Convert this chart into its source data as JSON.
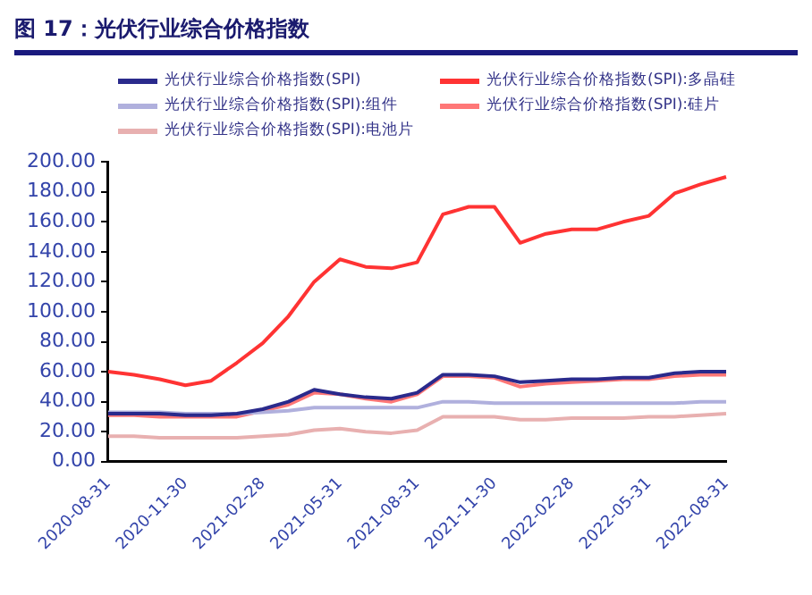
{
  "chart_data": {
    "type": "line",
    "title": "图 17：光伏行业综合价格指数",
    "categories": [
      "2020-08-31",
      null,
      null,
      "2020-11-30",
      null,
      null,
      "2021-02-28",
      null,
      null,
      "2021-05-31",
      null,
      null,
      "2021-08-31",
      null,
      null,
      "2021-11-30",
      null,
      null,
      "2022-02-28",
      null,
      null,
      "2022-05-31",
      null,
      null,
      "2022-08-31"
    ],
    "series": [
      {
        "name": "光伏行业综合价格指数(SPI)",
        "color": "#2a2a8c",
        "values": [
          32,
          32,
          32,
          31,
          31,
          32,
          35,
          40,
          48,
          45,
          43,
          42,
          46,
          58,
          58,
          57,
          53,
          54,
          55,
          55,
          56,
          56,
          59,
          60,
          60
        ]
      },
      {
        "name": "光伏行业综合价格指数(SPI):多晶硅",
        "color": "#ff3333",
        "values": [
          60,
          58,
          55,
          51,
          54,
          66,
          79,
          97,
          120,
          135,
          130,
          129,
          133,
          165,
          170,
          170,
          146,
          152,
          155,
          155,
          160,
          164,
          179,
          185,
          190
        ]
      },
      {
        "name": "光伏行业综合价格指数(SPI):组件",
        "color": "#b0b0dd",
        "values": [
          33,
          33,
          33,
          32,
          32,
          32,
          33,
          34,
          36,
          36,
          36,
          36,
          36,
          40,
          40,
          39,
          39,
          39,
          39,
          39,
          39,
          39,
          39,
          40,
          40
        ]
      },
      {
        "name": "光伏行业综合价格指数(SPI):硅片",
        "color": "#ff7777",
        "values": [
          31,
          31,
          30,
          30,
          30,
          30,
          34,
          38,
          46,
          45,
          42,
          40,
          45,
          57,
          57,
          56,
          50,
          52,
          53,
          54,
          55,
          55,
          57,
          58,
          58
        ]
      },
      {
        "name": "光伏行业综合价格指数(SPI):电池片",
        "color": "#e8b0b0",
        "values": [
          17,
          17,
          16,
          16,
          16,
          16,
          17,
          18,
          21,
          22,
          20,
          19,
          21,
          30,
          30,
          30,
          28,
          28,
          29,
          29,
          29,
          30,
          30,
          31,
          32
        ]
      }
    ],
    "ylim": [
      0,
      200
    ],
    "yticks": [
      {
        "value": 0,
        "label": "0.00"
      },
      {
        "value": 20,
        "label": "20.00"
      },
      {
        "value": 40,
        "label": "40.00"
      },
      {
        "value": 60,
        "label": "60.00"
      },
      {
        "value": 80,
        "label": "80.00"
      },
      {
        "value": 100,
        "label": "100.00"
      },
      {
        "value": 120,
        "label": "120.00"
      },
      {
        "value": 140,
        "label": "140.00"
      },
      {
        "value": 160,
        "label": "160.00"
      },
      {
        "value": 180,
        "label": "180.00"
      },
      {
        "value": 200,
        "label": "200.00"
      }
    ],
    "grid": false,
    "legend": "top",
    "marker": "none",
    "line_style": "solid"
  }
}
